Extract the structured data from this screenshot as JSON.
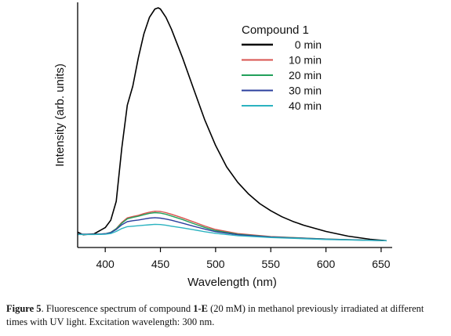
{
  "chart_data": {
    "type": "line",
    "title": "",
    "xlabel": "Wavelength (nm)",
    "ylabel": "Intensity (arb. units)",
    "xlim": [
      375,
      660
    ],
    "ylim": [
      0,
      100
    ],
    "xticks": [
      400,
      450,
      500,
      550,
      600,
      650
    ],
    "legend_title": "Compound 1",
    "legend_position": "top-right",
    "grid": false,
    "series": [
      {
        "name": "0 min",
        "color": "#000000",
        "x": [
          375,
          380,
          390,
          400,
          405,
          410,
          415,
          420,
          425,
          430,
          435,
          440,
          445,
          448,
          450,
          455,
          460,
          470,
          480,
          490,
          500,
          510,
          520,
          530,
          540,
          550,
          560,
          570,
          580,
          600,
          620,
          640,
          655
        ],
        "y": [
          4.5,
          3.4,
          3.8,
          6.4,
          9.5,
          17.5,
          40,
          58,
          66,
          78,
          88,
          95,
          98.5,
          99,
          98.5,
          95,
          90,
          78,
          65,
          52,
          41,
          32,
          25.5,
          20.5,
          16.5,
          13.5,
          11,
          9,
          7.4,
          4.8,
          2.8,
          1.5,
          0.9
        ]
      },
      {
        "name": "10 min",
        "color": "#d9534f",
        "x": [
          375,
          390,
          400,
          405,
          410,
          415,
          420,
          425,
          430,
          435,
          440,
          445,
          450,
          455,
          460,
          470,
          480,
          490,
          500,
          520,
          550,
          600,
          655
        ],
        "y": [
          3.6,
          3.6,
          3.8,
          4.4,
          6.0,
          8.6,
          10.5,
          11.1,
          11.6,
          12.3,
          12.9,
          13.3,
          13.2,
          12.7,
          12.0,
          10.5,
          8.8,
          7.1,
          5.6,
          3.9,
          2.6,
          1.6,
          0.9
        ]
      },
      {
        "name": "20 min",
        "color": "#22a05a",
        "x": [
          375,
          390,
          400,
          405,
          410,
          415,
          420,
          425,
          430,
          435,
          440,
          445,
          450,
          455,
          460,
          470,
          480,
          490,
          500,
          520,
          550,
          600,
          655
        ],
        "y": [
          3.6,
          3.6,
          3.8,
          4.4,
          5.9,
          8.3,
          10.1,
          10.7,
          11.2,
          11.8,
          12.4,
          12.7,
          12.5,
          12.0,
          11.3,
          9.8,
          8.1,
          6.5,
          5.1,
          3.6,
          2.5,
          1.6,
          0.9
        ]
      },
      {
        "name": "30 min",
        "color": "#2b3f9e",
        "x": [
          375,
          390,
          400,
          405,
          410,
          415,
          420,
          425,
          430,
          435,
          440,
          445,
          450,
          455,
          460,
          470,
          480,
          490,
          500,
          520,
          550,
          600,
          655
        ],
        "y": [
          3.6,
          3.6,
          3.8,
          4.3,
          5.6,
          7.6,
          8.9,
          9.3,
          9.6,
          10.0,
          10.4,
          10.6,
          10.4,
          10.0,
          9.5,
          8.3,
          7.0,
          5.8,
          4.7,
          3.4,
          2.4,
          1.5,
          0.9
        ]
      },
      {
        "name": "40 min",
        "color": "#2bb3c0",
        "x": [
          375,
          390,
          400,
          405,
          410,
          415,
          420,
          425,
          430,
          435,
          440,
          445,
          450,
          455,
          460,
          470,
          480,
          490,
          500,
          520,
          550,
          600,
          655
        ],
        "y": [
          3.5,
          3.5,
          3.6,
          3.9,
          4.8,
          6.0,
          6.8,
          7.0,
          7.2,
          7.4,
          7.6,
          7.8,
          7.7,
          7.4,
          7.0,
          6.3,
          5.5,
          4.7,
          4.0,
          3.0,
          2.2,
          1.4,
          0.9
        ]
      }
    ]
  },
  "caption": {
    "label": "Figure 5",
    "text_before": ". Fluorescence spectrum of compound ",
    "compound": "1-E",
    "text_after": " (20 mM) in methanol previously irradiated at different times with UV light. Excitation wavelength: 300 nm."
  }
}
